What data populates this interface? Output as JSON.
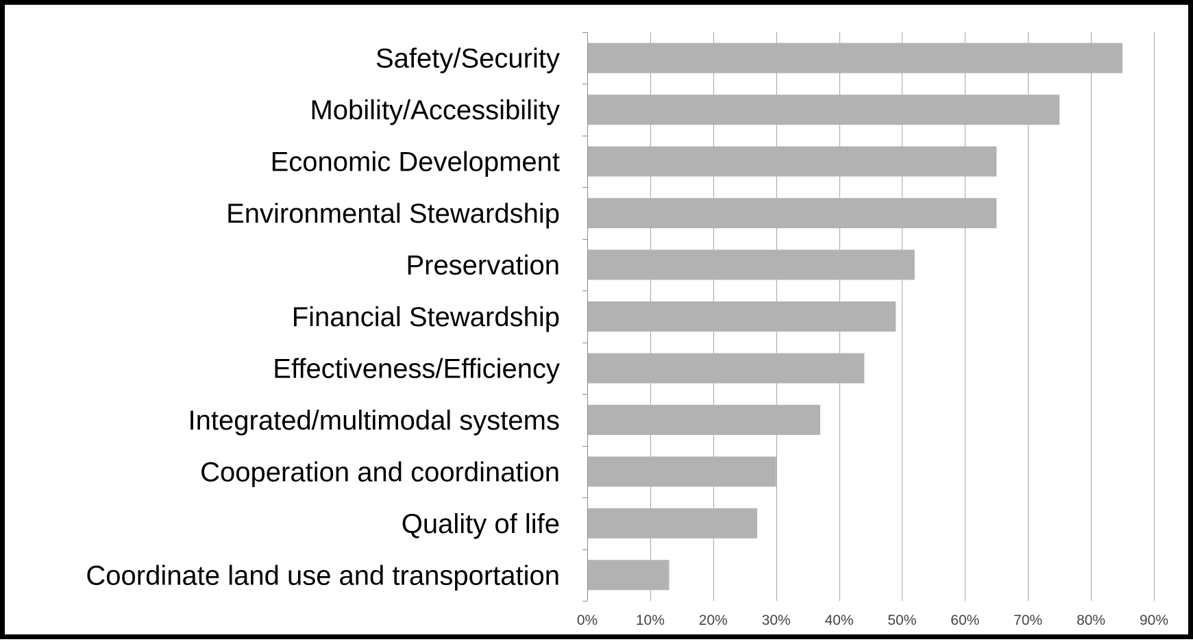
{
  "chart_data": {
    "type": "bar",
    "orientation": "horizontal",
    "title": "",
    "xlabel": "",
    "ylabel": "",
    "categories": [
      "Safety/Security",
      "Mobility/Accessibility",
      "Economic Development",
      "Environmental Stewardship",
      "Preservation",
      "Financial Stewardship",
      "Effectiveness/Efficiency",
      "Integrated/multimodal systems",
      "Cooperation and coordination",
      "Quality of life",
      "Coordinate land use and transportation"
    ],
    "values": [
      85,
      75,
      65,
      65,
      52,
      49,
      44,
      37,
      30,
      27,
      13
    ],
    "value_unit": "%",
    "xlim": [
      0,
      90
    ],
    "x_ticks": [
      0,
      10,
      20,
      30,
      40,
      50,
      60,
      70,
      80,
      90
    ],
    "x_tick_labels": [
      "0%",
      "10%",
      "20%",
      "30%",
      "40%",
      "50%",
      "60%",
      "70%",
      "80%",
      "90%"
    ],
    "grid": "vertical",
    "legend": "none",
    "colors": {
      "bar": "#b2b2b2",
      "grid": "#a6a6a6",
      "axis": "#8c8c8c",
      "frame": "#000000"
    }
  }
}
